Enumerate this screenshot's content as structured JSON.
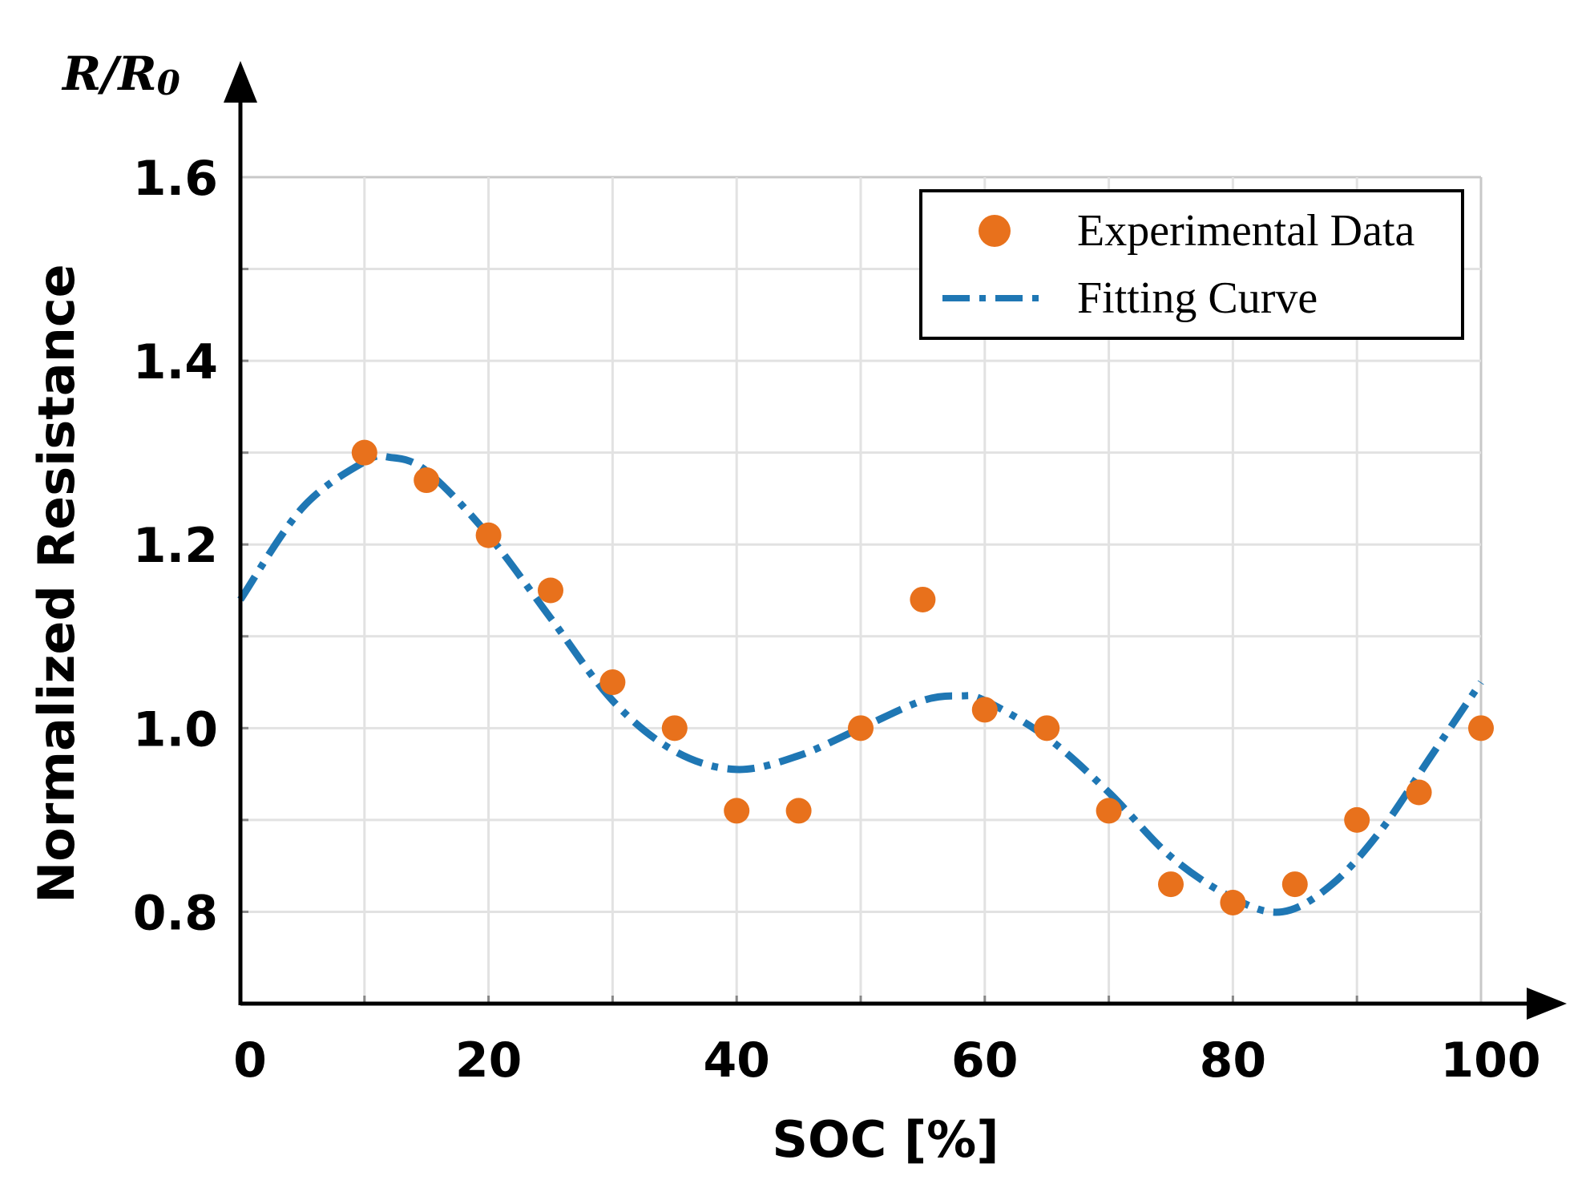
{
  "chart_data": {
    "type": "scatter",
    "title": "",
    "xlabel": "SOC [%]",
    "ylabel": "Normalized Resistance",
    "ylabel_unit_main": "R/R",
    "ylabel_unit_sub": "0",
    "xlim": [
      0,
      100
    ],
    "ylim": [
      0.7,
      1.6
    ],
    "grid": true,
    "legend_position": "top-right",
    "x_ticks": [
      0,
      20,
      40,
      60,
      80,
      100
    ],
    "x_tick_labels": [
      "0",
      "20",
      "40",
      "60",
      "80",
      "100"
    ],
    "x_minor_grid": [
      10,
      30,
      50,
      70,
      90
    ],
    "y_ticks": [
      0.8,
      1.0,
      1.2,
      1.4,
      1.6
    ],
    "y_tick_labels": [
      "0.8",
      "1.0",
      "1.2",
      "1.4",
      "1.6"
    ],
    "y_minor_grid": [
      0.9,
      1.1,
      1.3,
      1.5
    ],
    "series": [
      {
        "name": "Experimental Data",
        "kind": "scatter",
        "color": "#E8711C",
        "x": [
          10,
          15,
          20,
          25,
          30,
          35,
          40,
          45,
          50,
          55,
          60,
          65,
          70,
          75,
          80,
          85,
          90,
          95,
          100
        ],
        "y": [
          1.3,
          1.27,
          1.21,
          1.15,
          1.05,
          1.0,
          0.91,
          0.91,
          1.0,
          1.14,
          1.02,
          1.0,
          0.91,
          0.83,
          0.81,
          0.83,
          0.9,
          0.93,
          1.0
        ]
      },
      {
        "name": "Fitting Curve",
        "kind": "line",
        "style": "dash-dot",
        "color": "#1F77B4",
        "x": [
          0,
          5,
          10,
          12,
          15,
          20,
          25,
          30,
          35,
          40,
          45,
          50,
          55,
          58,
          60,
          65,
          70,
          75,
          80,
          84,
          88,
          92,
          96,
          100
        ],
        "y": [
          1.14,
          1.24,
          1.29,
          1.295,
          1.28,
          1.21,
          1.12,
          1.03,
          0.975,
          0.955,
          0.97,
          1.0,
          1.03,
          1.035,
          1.03,
          0.99,
          0.93,
          0.86,
          0.815,
          0.8,
          0.83,
          0.89,
          0.97,
          1.05
        ]
      }
    ]
  }
}
